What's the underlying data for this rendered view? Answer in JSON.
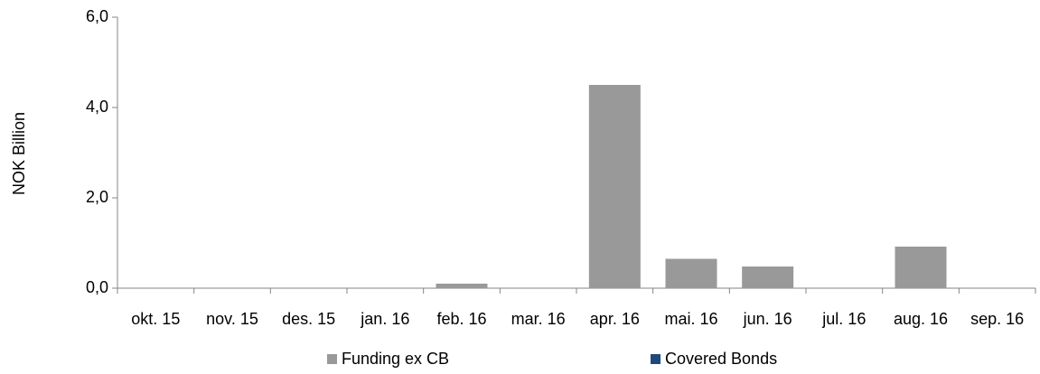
{
  "chart_data": {
    "type": "bar",
    "stacked": true,
    "y_label": "NOK Billion",
    "categories": [
      "okt. 15",
      "nov. 15",
      "des. 15",
      "jan. 16",
      "feb. 16",
      "mar. 16",
      "apr. 16",
      "mai. 16",
      "jun. 16",
      "jul. 16",
      "aug. 16",
      "sep. 16"
    ],
    "series": [
      {
        "name": "Funding ex CB",
        "color": "#999999",
        "values": [
          0,
          0,
          0,
          0,
          0.1,
          0,
          4.5,
          0.65,
          0.48,
          0,
          0.92,
          0
        ]
      },
      {
        "name": "Covered Bonds",
        "color": "#1f497d",
        "values": [
          0,
          0,
          0,
          0,
          0,
          0,
          0,
          0,
          0,
          0,
          0,
          0
        ]
      }
    ],
    "ylim": [
      0,
      6
    ],
    "yticks": [
      {
        "value": 0,
        "label": "0,0"
      },
      {
        "value": 2,
        "label": "2,0"
      },
      {
        "value": 4,
        "label": "4,0"
      },
      {
        "value": 6,
        "label": "6,0"
      }
    ],
    "legend": "bottom"
  }
}
